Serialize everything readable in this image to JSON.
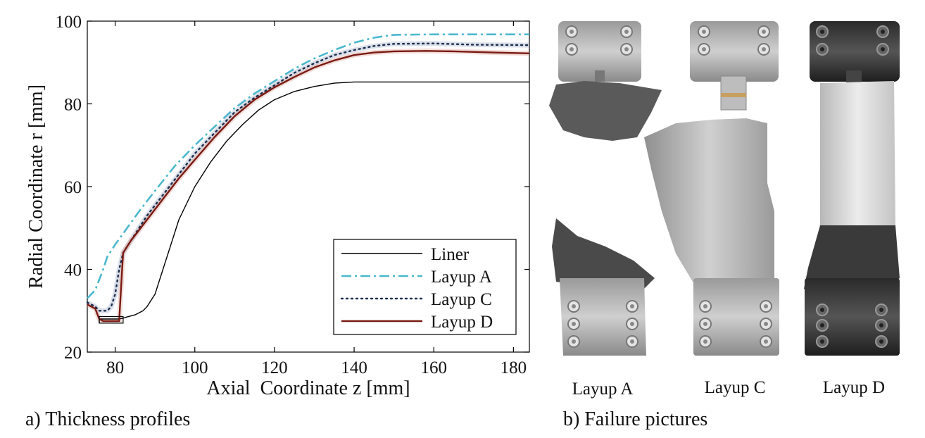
{
  "chart_data": {
    "type": "line",
    "xlabel": "Axial  Coordinate z [mm]",
    "ylabel": "Radial Coordinate r [mm]",
    "xlim": [
      73,
      184
    ],
    "ylim": [
      20,
      100
    ],
    "xticks": [
      80,
      100,
      120,
      140,
      160,
      180
    ],
    "yticks": [
      20,
      40,
      60,
      80,
      100
    ],
    "legend_position": "bottom-right",
    "grid": false,
    "series": [
      {
        "name": "Liner",
        "color": "#000000",
        "style": "solid",
        "points": [
          [
            76,
            27
          ],
          [
            76,
            28
          ],
          [
            77,
            28
          ],
          [
            81,
            28
          ],
          [
            82,
            28.2
          ],
          [
            83,
            28.5
          ],
          [
            85,
            29
          ],
          [
            87,
            30
          ],
          [
            88,
            31
          ],
          [
            90,
            34
          ],
          [
            92,
            40
          ],
          [
            94,
            46
          ],
          [
            96,
            52
          ],
          [
            98,
            56
          ],
          [
            100,
            60
          ],
          [
            104,
            66
          ],
          [
            108,
            71
          ],
          [
            112,
            75
          ],
          [
            116,
            78.5
          ],
          [
            120,
            81
          ],
          [
            125,
            83
          ],
          [
            130,
            84.2
          ],
          [
            135,
            85
          ],
          [
            140,
            85.3
          ],
          [
            150,
            85.3
          ],
          [
            160,
            85.3
          ],
          [
            170,
            85.3
          ],
          [
            184,
            85.3
          ]
        ]
      },
      {
        "name": "Layup A",
        "color": "#4ab8cc",
        "style": "dashdot",
        "points": [
          [
            73,
            33
          ],
          [
            75,
            35
          ],
          [
            77,
            40
          ],
          [
            78,
            43
          ],
          [
            80,
            46
          ],
          [
            83,
            50
          ],
          [
            86,
            54
          ],
          [
            90,
            59
          ],
          [
            95,
            65
          ],
          [
            100,
            70
          ],
          [
            105,
            74.5
          ],
          [
            110,
            79
          ],
          [
            115,
            82.5
          ],
          [
            120,
            85.5
          ],
          [
            125,
            88.5
          ],
          [
            130,
            91
          ],
          [
            135,
            93
          ],
          [
            140,
            94.8
          ],
          [
            145,
            96
          ],
          [
            150,
            96.7
          ],
          [
            160,
            96.8
          ],
          [
            170,
            96.8
          ],
          [
            184,
            96.8
          ]
        ]
      },
      {
        "name": "Layup C",
        "color": "#1a2d4d",
        "style": "dotted",
        "points": [
          [
            73,
            32
          ],
          [
            75,
            31
          ],
          [
            76,
            30
          ],
          [
            78,
            30
          ],
          [
            79,
            31
          ],
          [
            80,
            34
          ],
          [
            81,
            40
          ],
          [
            82,
            44
          ],
          [
            84,
            47
          ],
          [
            88,
            53
          ],
          [
            92,
            58
          ],
          [
            96,
            63
          ],
          [
            100,
            68
          ],
          [
            105,
            73
          ],
          [
            110,
            78
          ],
          [
            115,
            81.5
          ],
          [
            120,
            84.5
          ],
          [
            125,
            87.5
          ],
          [
            130,
            89.8
          ],
          [
            135,
            91.8
          ],
          [
            140,
            93
          ],
          [
            145,
            94
          ],
          [
            150,
            94.5
          ],
          [
            160,
            94.6
          ],
          [
            170,
            94.3
          ],
          [
            184,
            94.2
          ]
        ]
      },
      {
        "name": "Layup D",
        "color": "#7a1a12",
        "style": "solid",
        "points": [
          [
            73,
            31.5
          ],
          [
            74,
            31
          ],
          [
            75,
            30.5
          ],
          [
            76,
            28
          ],
          [
            77,
            27.5
          ],
          [
            81,
            27.5
          ],
          [
            81.5,
            36
          ],
          [
            82,
            44
          ],
          [
            84,
            47
          ],
          [
            88,
            52
          ],
          [
            92,
            57
          ],
          [
            96,
            62
          ],
          [
            100,
            66.5
          ],
          [
            105,
            72
          ],
          [
            110,
            77
          ],
          [
            115,
            81
          ],
          [
            120,
            84
          ],
          [
            125,
            86.5
          ],
          [
            130,
            88.8
          ],
          [
            135,
            90.5
          ],
          [
            140,
            91.8
          ],
          [
            145,
            92.4
          ],
          [
            150,
            92.7
          ],
          [
            158,
            92.8
          ],
          [
            165,
            92.7
          ],
          [
            175,
            92.4
          ],
          [
            184,
            92.2
          ]
        ]
      }
    ]
  },
  "captions": {
    "left": "a) Thickness profiles",
    "right": "b) Failure pictures"
  },
  "photos": [
    {
      "label": "Layup A"
    },
    {
      "label": "Layup C"
    },
    {
      "label": "Layup D"
    }
  ]
}
